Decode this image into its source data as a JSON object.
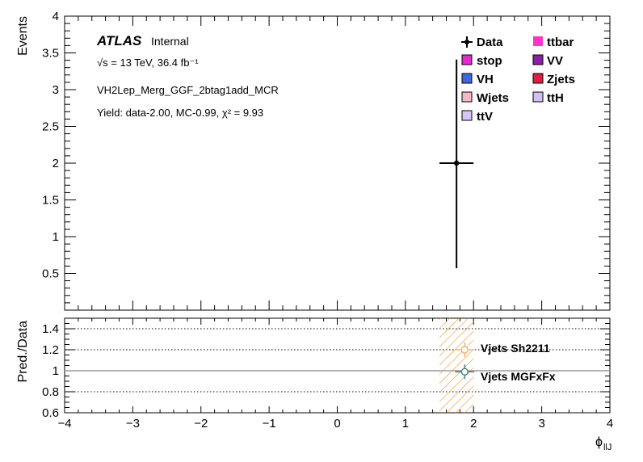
{
  "chart_data": [
    {
      "type": "scatter",
      "panel": "main",
      "ylabel": "Events",
      "xlim": [
        -4,
        4
      ],
      "ylim": [
        0,
        4
      ],
      "y_ticks": [
        "0.5",
        "1",
        "1.5",
        "2",
        "2.5",
        "3",
        "3.5",
        "4"
      ],
      "atlas_label": "ATLAS",
      "atlas_status": "Internal",
      "energy_label": "√s = 13 TeV, 36.4 fb⁻¹",
      "region_label": "VH2Lep_Merg_GGF_2btag1add_MCR",
      "yield_label": "Yield: data-2.00, MC-0.99, χ² = 9.93",
      "legend_position": "top-right",
      "legend": [
        {
          "name": "Data",
          "color": "#000000",
          "marker": "point"
        },
        {
          "name": "ttbar",
          "color": "#ff33cc"
        },
        {
          "name": "stop",
          "color": "#e22ad1"
        },
        {
          "name": "VV",
          "color": "#8a1fa8"
        },
        {
          "name": "VH",
          "color": "#3f67dd"
        },
        {
          "name": "Zjets",
          "color": "#dc1f42"
        },
        {
          "name": "Wjets",
          "color": "#f4b7c3"
        },
        {
          "name": "ttH",
          "color": "#d2bff5"
        },
        {
          "name": "ttV",
          "color": "#d6c6f7"
        }
      ],
      "series": [
        {
          "name": "Data",
          "points": [
            {
              "x": 1.75,
              "y": 2.0,
              "xerr": 0.25,
              "yerr_low": 1.43,
              "yerr_high": 1.41
            }
          ]
        }
      ]
    },
    {
      "type": "scatter",
      "panel": "ratio",
      "ylabel": "Pred./Data",
      "xlabel": "ϕ",
      "xlabel_sub": "llJ",
      "xlim": [
        -4,
        4
      ],
      "ylim": [
        0.6,
        1.5
      ],
      "x_ticks": [
        "−4",
        "−3",
        "−2",
        "−1",
        "0",
        "1",
        "2",
        "3",
        "4"
      ],
      "y_ticks": [
        "0.6",
        "0.8",
        "1",
        "1.2",
        "1.4"
      ],
      "dotted_lines": [
        0.8,
        1.2,
        1.4
      ],
      "reference_line": 1.0,
      "band": {
        "x_low": 1.5,
        "x_high": 2.0,
        "y_low": 0.6,
        "y_high": 1.5,
        "color": "#f0a040"
      },
      "series": [
        {
          "name": "Vjets Sh2211",
          "color": "#f4b37a",
          "x": 1.87,
          "y": 1.2,
          "xerr": 0.14,
          "yerr": 0.07
        },
        {
          "name": "Vjets MGFxFx",
          "color": "#4a8a90",
          "x": 1.87,
          "y": 0.99,
          "xerr": 0.14,
          "yerr": 0.07
        }
      ]
    }
  ]
}
